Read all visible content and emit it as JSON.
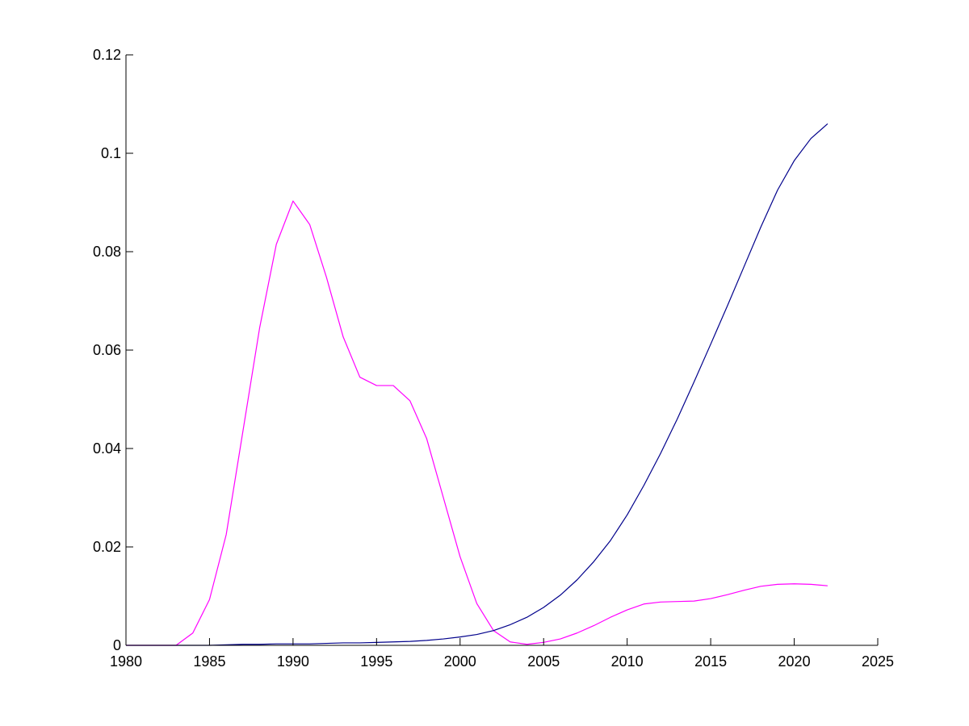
{
  "chart_data": {
    "type": "line",
    "title": "",
    "xlabel": "",
    "ylabel": "",
    "xlim": [
      1980,
      2025
    ],
    "ylim": [
      0,
      0.12
    ],
    "grid": false,
    "x_ticks": [
      1980,
      1985,
      1990,
      1995,
      2000,
      2005,
      2010,
      2015,
      2020,
      2025
    ],
    "y_ticks": [
      0,
      0.02,
      0.04,
      0.06,
      0.08,
      0.1,
      0.12
    ],
    "x_tick_labels": [
      "1980",
      "1985",
      "1990",
      "1995",
      "2000",
      "2005",
      "2010",
      "2015",
      "2020",
      "2025"
    ],
    "y_tick_labels": [
      "0",
      "0.02",
      "0.04",
      "0.06",
      "0.08",
      "0.1",
      "0.12"
    ],
    "x": [
      1980,
      1981,
      1982,
      1983,
      1984,
      1985,
      1986,
      1987,
      1988,
      1989,
      1990,
      1991,
      1992,
      1993,
      1994,
      1995,
      1996,
      1997,
      1998,
      1999,
      2000,
      2001,
      2002,
      2003,
      2004,
      2005,
      2006,
      2007,
      2008,
      2009,
      2010,
      2011,
      2012,
      2013,
      2014,
      2015,
      2016,
      2017,
      2018,
      2019,
      2020,
      2021,
      2022
    ],
    "series": [
      {
        "color": "#ff00ff",
        "values": [
          0,
          0,
          0,
          0,
          0.0025,
          0.0093,
          0.0225,
          0.0435,
          0.0645,
          0.0815,
          0.0903,
          0.0855,
          0.0748,
          0.0627,
          0.0545,
          0.0528,
          0.0528,
          0.0497,
          0.042,
          0.03,
          0.018,
          0.0085,
          0.003,
          0.0007,
          0.0002,
          0.0006,
          0.0013,
          0.0025,
          0.004,
          0.0057,
          0.0072,
          0.0084,
          0.0088,
          0.0089,
          0.009,
          0.0095,
          0.0103,
          0.0112,
          0.012,
          0.0124,
          0.0125,
          0.0124,
          0.0121
        ]
      },
      {
        "color": "#00008b",
        "values": [
          0,
          0,
          0,
          0,
          0,
          0,
          0.0001,
          0.0002,
          0.0002,
          0.0003,
          0.0003,
          0.0003,
          0.0004,
          0.0005,
          0.0005,
          0.0006,
          0.0007,
          0.0008,
          0.001,
          0.0013,
          0.0017,
          0.0022,
          0.003,
          0.0042,
          0.0057,
          0.0077,
          0.0102,
          0.0133,
          0.017,
          0.0213,
          0.0265,
          0.0325,
          0.039,
          0.046,
          0.0535,
          0.0612,
          0.069,
          0.077,
          0.085,
          0.0925,
          0.0985,
          0.103,
          0.106
        ]
      }
    ]
  }
}
